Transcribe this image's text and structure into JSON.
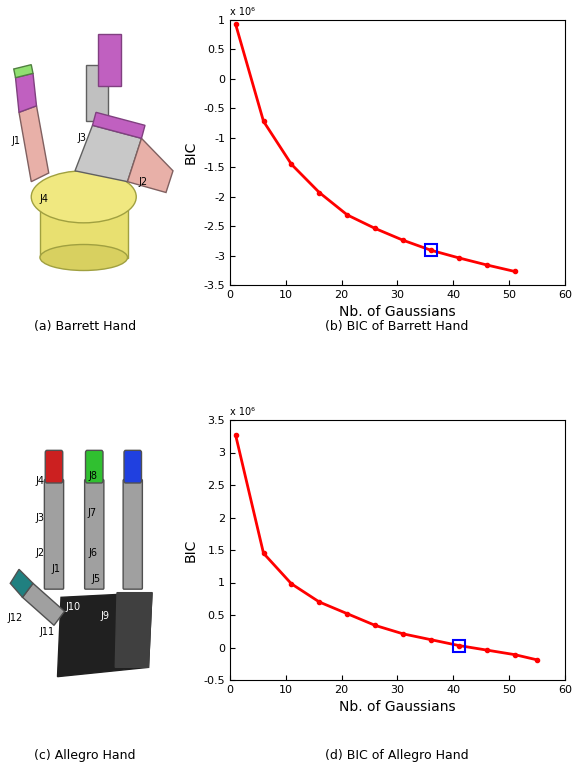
{
  "illustrations": [
    {
      "caption": "(a) Barrett Hand",
      "joint_labels": [
        "J1",
        "J3",
        "J4",
        "J2"
      ]
    },
    {
      "caption": "(c) Allegro Hand",
      "joint_labels": [
        "J1",
        "J2",
        "J3",
        "J4",
        "J5",
        "J6",
        "J7",
        "J8",
        "J9",
        "J10",
        "J11",
        "J12"
      ]
    }
  ],
  "chart_data": [
    {
      "type": "line",
      "caption": "(b) BIC of Barrett Hand",
      "x_label": "Nb. of Gaussians",
      "y_label": "BIC",
      "annotation": "x 10⁶",
      "x": [
        1,
        6,
        11,
        16,
        21,
        26,
        31,
        36,
        41,
        46,
        51
      ],
      "values": [
        0.93,
        -0.72,
        -1.45,
        -1.93,
        -2.31,
        -2.54,
        -2.74,
        -2.91,
        -3.04,
        -3.16,
        -3.27
      ],
      "color": "#ff0000",
      "marker": "point",
      "selected": {
        "x": 36,
        "y": -2.91,
        "color": "#0000ff",
        "marker": "square"
      },
      "xlim": [
        0,
        60
      ],
      "xticks": [
        0,
        10,
        20,
        30,
        40,
        50,
        60
      ],
      "ylim": [
        -3.5,
        1
      ],
      "yticks": [
        -3.5,
        -3,
        -2.5,
        -2,
        -1.5,
        -1,
        -0.5,
        0,
        0.5,
        1
      ],
      "grid": false
    },
    {
      "type": "line",
      "caption": "(d) BIC of Allegro Hand",
      "x_label": "Nb. of Gaussians",
      "y_label": "BIC",
      "annotation": "x 10⁶",
      "x": [
        1,
        6,
        11,
        16,
        21,
        26,
        31,
        36,
        41,
        46,
        51,
        55
      ],
      "values": [
        3.27,
        1.45,
        0.98,
        0.7,
        0.52,
        0.34,
        0.21,
        0.12,
        0.03,
        -0.04,
        -0.11,
        -0.19
      ],
      "color": "#ff0000",
      "marker": "point",
      "selected": {
        "x": 41,
        "y": 0.03,
        "color": "#0000ff",
        "marker": "square"
      },
      "xlim": [
        0,
        60
      ],
      "xticks": [
        0,
        10,
        20,
        30,
        40,
        50,
        60
      ],
      "ylim": [
        -0.5,
        3.5
      ],
      "yticks": [
        -0.5,
        0,
        0.5,
        1,
        1.5,
        2,
        2.5,
        3,
        3.5
      ],
      "grid": false
    }
  ]
}
